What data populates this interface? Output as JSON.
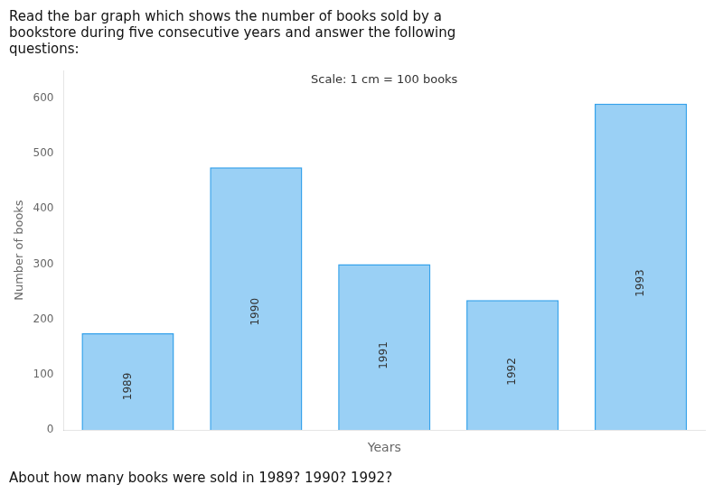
{
  "chart_data": {
    "type": "bar",
    "title": "Read the bar graph which shows the number of books sold by a\nbookstore during five consecutive years and answer the following\nquestions:",
    "xlabel": "Years",
    "ylabel": "Number of books",
    "categories": [
      "1989",
      "1990",
      "1991",
      "1992",
      "1993"
    ],
    "values": [
      175,
      475,
      300,
      235,
      590
    ],
    "ylim": [
      0,
      650
    ],
    "yticks": [
      0,
      100,
      200,
      300,
      400,
      500,
      600
    ],
    "grid": false,
    "tick_labels": "y",
    "annotations": [
      "Scale: 1 cm = 100 books",
      "About how many books were sold in 1989? 1990? 1992?"
    ]
  }
}
